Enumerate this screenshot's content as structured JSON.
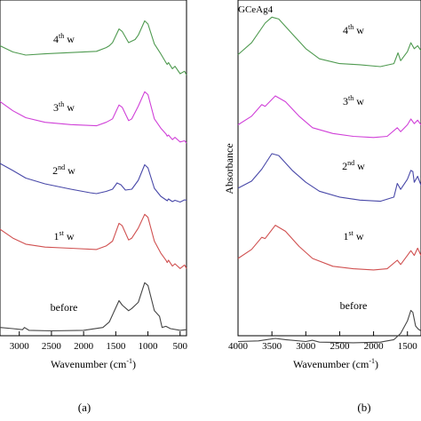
{
  "colors": {
    "4th": "#4f9a50",
    "3th": "#d040d8",
    "2nd": "#4848a8",
    "1st": "#d05050",
    "before": "#444444"
  },
  "chart_data": [
    {
      "type": "line",
      "panel": "(a)",
      "title": "",
      "xlabel": "Wavenumber (cm",
      "xlabel_sup": "-1",
      "xlabel_end": ")",
      "ylabel": "",
      "xlim": [
        3300,
        400
      ],
      "x_ticks": [
        "3000",
        "2500",
        "2000",
        "1500",
        "1000",
        "500"
      ],
      "series": [
        {
          "key": "4th",
          "label": "4",
          "sup": "th",
          "label_end": " w",
          "points": [
            [
              3300,
              0.55
            ],
            [
              3100,
              0.45
            ],
            [
              2900,
              0.4
            ],
            [
              2600,
              0.42
            ],
            [
              2200,
              0.44
            ],
            [
              1800,
              0.46
            ],
            [
              1650,
              0.52
            ],
            [
              1600,
              0.55
            ],
            [
              1550,
              0.6
            ],
            [
              1450,
              0.82
            ],
            [
              1400,
              0.78
            ],
            [
              1300,
              0.6
            ],
            [
              1200,
              0.65
            ],
            [
              1150,
              0.72
            ],
            [
              1050,
              0.95
            ],
            [
              1000,
              0.9
            ],
            [
              900,
              0.58
            ],
            [
              800,
              0.42
            ],
            [
              720,
              0.28
            ],
            [
              700,
              0.25
            ],
            [
              680,
              0.28
            ],
            [
              620,
              0.18
            ],
            [
              580,
              0.22
            ],
            [
              500,
              0.1
            ],
            [
              430,
              0.14
            ],
            [
              400,
              0.08
            ]
          ]
        },
        {
          "key": "3th",
          "label": "3",
          "sup": "th",
          "label_end": " w",
          "points": [
            [
              3300,
              0.78
            ],
            [
              3100,
              0.62
            ],
            [
              2900,
              0.5
            ],
            [
              2600,
              0.42
            ],
            [
              2200,
              0.38
            ],
            [
              1800,
              0.36
            ],
            [
              1650,
              0.42
            ],
            [
              1600,
              0.45
            ],
            [
              1550,
              0.48
            ],
            [
              1450,
              0.72
            ],
            [
              1400,
              0.68
            ],
            [
              1300,
              0.45
            ],
            [
              1250,
              0.48
            ],
            [
              1150,
              0.7
            ],
            [
              1050,
              0.95
            ],
            [
              1000,
              0.9
            ],
            [
              900,
              0.48
            ],
            [
              800,
              0.32
            ],
            [
              720,
              0.22
            ],
            [
              700,
              0.18
            ],
            [
              680,
              0.2
            ],
            [
              620,
              0.12
            ],
            [
              580,
              0.16
            ],
            [
              500,
              0.08
            ],
            [
              430,
              0.1
            ],
            [
              400,
              0.06
            ]
          ]
        },
        {
          "key": "2nd",
          "label": "2",
          "sup": "nd",
          "label_end": " w",
          "points": [
            [
              3300,
              0.88
            ],
            [
              3100,
              0.72
            ],
            [
              2900,
              0.55
            ],
            [
              2600,
              0.42
            ],
            [
              2200,
              0.3
            ],
            [
              1900,
              0.22
            ],
            [
              1800,
              0.2
            ],
            [
              1650,
              0.25
            ],
            [
              1550,
              0.3
            ],
            [
              1480,
              0.44
            ],
            [
              1420,
              0.4
            ],
            [
              1350,
              0.28
            ],
            [
              1250,
              0.3
            ],
            [
              1150,
              0.5
            ],
            [
              1050,
              0.85
            ],
            [
              1000,
              0.78
            ],
            [
              900,
              0.32
            ],
            [
              800,
              0.14
            ],
            [
              720,
              0.06
            ],
            [
              700,
              0.04
            ],
            [
              680,
              0.08
            ],
            [
              620,
              0.02
            ],
            [
              580,
              0.05
            ],
            [
              500,
              0.01
            ],
            [
              430,
              0.06
            ],
            [
              400,
              0.05
            ]
          ]
        },
        {
          "key": "1st",
          "label": "1",
          "sup": "st",
          "label_end": " w",
          "points": [
            [
              3300,
              0.7
            ],
            [
              3100,
              0.55
            ],
            [
              2900,
              0.45
            ],
            [
              2600,
              0.4
            ],
            [
              2200,
              0.38
            ],
            [
              1800,
              0.36
            ],
            [
              1650,
              0.42
            ],
            [
              1550,
              0.5
            ],
            [
              1450,
              0.8
            ],
            [
              1400,
              0.76
            ],
            [
              1300,
              0.52
            ],
            [
              1250,
              0.55
            ],
            [
              1150,
              0.72
            ],
            [
              1050,
              0.95
            ],
            [
              1000,
              0.9
            ],
            [
              900,
              0.5
            ],
            [
              800,
              0.3
            ],
            [
              720,
              0.18
            ],
            [
              700,
              0.14
            ],
            [
              680,
              0.18
            ],
            [
              620,
              0.08
            ],
            [
              580,
              0.12
            ],
            [
              500,
              0.04
            ],
            [
              430,
              0.1
            ],
            [
              400,
              0.04
            ]
          ]
        },
        {
          "key": "before",
          "label": "before",
          "sup": "",
          "label_end": "",
          "points": [
            [
              3300,
              0.1
            ],
            [
              3100,
              0.08
            ],
            [
              2950,
              0.06
            ],
            [
              2920,
              0.1
            ],
            [
              2850,
              0.05
            ],
            [
              2500,
              0.04
            ],
            [
              2000,
              0.05
            ],
            [
              1700,
              0.1
            ],
            [
              1600,
              0.2
            ],
            [
              1500,
              0.45
            ],
            [
              1450,
              0.58
            ],
            [
              1400,
              0.5
            ],
            [
              1300,
              0.4
            ],
            [
              1250,
              0.44
            ],
            [
              1150,
              0.55
            ],
            [
              1050,
              0.9
            ],
            [
              1000,
              0.85
            ],
            [
              900,
              0.4
            ],
            [
              820,
              0.3
            ],
            [
              780,
              0.1
            ],
            [
              720,
              0.12
            ],
            [
              650,
              0.08
            ],
            [
              500,
              0.05
            ],
            [
              400,
              0.06
            ]
          ]
        }
      ]
    },
    {
      "type": "line",
      "panel": "(b)",
      "title": "GCeAg4",
      "xlabel": "Wavenumber (cm",
      "xlabel_sup": "-1",
      "xlabel_end": ")",
      "ylabel": "Absorbance",
      "xlim": [
        4000,
        1300
      ],
      "x_ticks": [
        "4000",
        "3500",
        "3000",
        "2500",
        "2000",
        "1500"
      ],
      "series": [
        {
          "key": "4th",
          "label": "4",
          "sup": "th",
          "label_end": " w",
          "points": [
            [
              4000,
              0.35
            ],
            [
              3800,
              0.55
            ],
            [
              3600,
              0.88
            ],
            [
              3500,
              0.98
            ],
            [
              3400,
              0.95
            ],
            [
              3200,
              0.7
            ],
            [
              3000,
              0.45
            ],
            [
              2800,
              0.28
            ],
            [
              2500,
              0.2
            ],
            [
              2200,
              0.18
            ],
            [
              1900,
              0.15
            ],
            [
              1700,
              0.2
            ],
            [
              1640,
              0.38
            ],
            [
              1600,
              0.25
            ],
            [
              1500,
              0.4
            ],
            [
              1450,
              0.55
            ],
            [
              1400,
              0.45
            ],
            [
              1350,
              0.5
            ],
            [
              1300,
              0.42
            ]
          ]
        },
        {
          "key": "3th",
          "label": "3",
          "sup": "th",
          "label_end": " w",
          "points": [
            [
              4000,
              0.3
            ],
            [
              3800,
              0.45
            ],
            [
              3650,
              0.65
            ],
            [
              3600,
              0.62
            ],
            [
              3450,
              0.8
            ],
            [
              3300,
              0.7
            ],
            [
              3100,
              0.45
            ],
            [
              2900,
              0.25
            ],
            [
              2600,
              0.15
            ],
            [
              2300,
              0.1
            ],
            [
              2000,
              0.08
            ],
            [
              1800,
              0.1
            ],
            [
              1650,
              0.25
            ],
            [
              1600,
              0.18
            ],
            [
              1500,
              0.3
            ],
            [
              1450,
              0.4
            ],
            [
              1400,
              0.32
            ],
            [
              1350,
              0.38
            ],
            [
              1300,
              0.3
            ]
          ]
        },
        {
          "key": "2nd",
          "label": "2",
          "sup": "nd",
          "label_end": " w",
          "points": [
            [
              4000,
              0.3
            ],
            [
              3800,
              0.42
            ],
            [
              3650,
              0.62
            ],
            [
              3500,
              0.88
            ],
            [
              3400,
              0.85
            ],
            [
              3200,
              0.6
            ],
            [
              3000,
              0.4
            ],
            [
              2800,
              0.25
            ],
            [
              2500,
              0.15
            ],
            [
              2200,
              0.1
            ],
            [
              1900,
              0.08
            ],
            [
              1700,
              0.15
            ],
            [
              1650,
              0.38
            ],
            [
              1600,
              0.28
            ],
            [
              1500,
              0.45
            ],
            [
              1450,
              0.6
            ],
            [
              1420,
              0.58
            ],
            [
              1400,
              0.4
            ],
            [
              1350,
              0.5
            ],
            [
              1300,
              0.35
            ]
          ]
        },
        {
          "key": "1st",
          "label": "1",
          "sup": "st",
          "label_end": " w",
          "points": [
            [
              4000,
              0.25
            ],
            [
              3800,
              0.4
            ],
            [
              3650,
              0.6
            ],
            [
              3600,
              0.58
            ],
            [
              3450,
              0.8
            ],
            [
              3300,
              0.7
            ],
            [
              3100,
              0.45
            ],
            [
              2900,
              0.25
            ],
            [
              2600,
              0.12
            ],
            [
              2300,
              0.08
            ],
            [
              2000,
              0.06
            ],
            [
              1800,
              0.08
            ],
            [
              1650,
              0.22
            ],
            [
              1600,
              0.15
            ],
            [
              1500,
              0.3
            ],
            [
              1450,
              0.38
            ],
            [
              1400,
              0.3
            ],
            [
              1350,
              0.42
            ],
            [
              1300,
              0.3
            ]
          ]
        },
        {
          "key": "before",
          "label": "before",
          "sup": "",
          "label_end": "",
          "points": [
            [
              4000,
              0.05
            ],
            [
              3700,
              0.06
            ],
            [
              3450,
              0.1
            ],
            [
              3300,
              0.08
            ],
            [
              3000,
              0.05
            ],
            [
              2900,
              0.07
            ],
            [
              2800,
              0.04
            ],
            [
              2300,
              0.03
            ],
            [
              1900,
              0.04
            ],
            [
              1700,
              0.08
            ],
            [
              1600,
              0.18
            ],
            [
              1500,
              0.38
            ],
            [
              1450,
              0.55
            ],
            [
              1420,
              0.52
            ],
            [
              1380,
              0.3
            ],
            [
              1340,
              0.25
            ],
            [
              1300,
              0.22
            ]
          ]
        }
      ]
    }
  ]
}
